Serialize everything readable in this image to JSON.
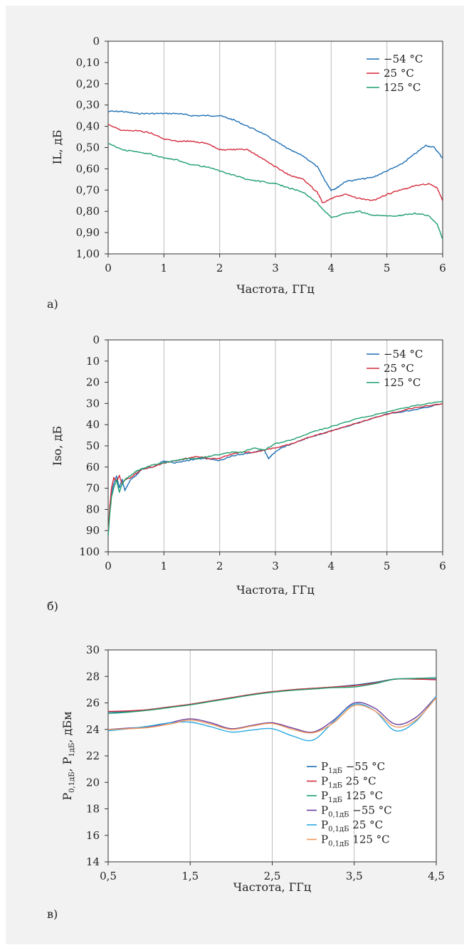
{
  "colors": {
    "blue": "#1f6fb4",
    "red": "#d42c3c",
    "green": "#1e9e6e",
    "purple": "#6b3fa0",
    "cyan": "#29a9e0",
    "orange": "#f0965a"
  },
  "chart_data": [
    {
      "type": "line",
      "panel_label": "а)",
      "xlabel": "Частота, ГГц",
      "ylabel": "IL, дБ",
      "xlim": [
        0,
        6
      ],
      "ylim": [
        0,
        1.0
      ],
      "y_inverted": true,
      "grid": "vertical",
      "legend_position": "top-right",
      "x_ticks": [
        "0",
        "1",
        "2",
        "3",
        "4",
        "5",
        "6"
      ],
      "y_ticks": [
        "0",
        "0,10",
        "0,20",
        "0,30",
        "0,40",
        "0,50",
        "0,60",
        "0,70",
        "0,80",
        "0,90",
        "1,00"
      ],
      "series": [
        {
          "name": "−54 °C",
          "color": "blue",
          "x": [
            0,
            0.25,
            0.5,
            0.75,
            1,
            1.25,
            1.5,
            1.75,
            2,
            2.25,
            2.5,
            2.75,
            3,
            3.25,
            3.5,
            3.75,
            3.9,
            4.0,
            4.1,
            4.25,
            4.5,
            4.75,
            5,
            5.25,
            5.5,
            5.7,
            5.85,
            6
          ],
          "y": [
            0.33,
            0.33,
            0.34,
            0.34,
            0.34,
            0.34,
            0.35,
            0.35,
            0.35,
            0.37,
            0.4,
            0.43,
            0.47,
            0.51,
            0.54,
            0.59,
            0.66,
            0.7,
            0.69,
            0.66,
            0.65,
            0.64,
            0.61,
            0.58,
            0.53,
            0.49,
            0.5,
            0.55
          ]
        },
        {
          "name": "25 °C",
          "color": "red",
          "x": [
            0,
            0.25,
            0.5,
            0.75,
            1,
            1.25,
            1.5,
            1.75,
            2,
            2.25,
            2.5,
            2.75,
            3,
            3.25,
            3.5,
            3.75,
            3.85,
            4.0,
            4.25,
            4.5,
            4.75,
            5,
            5.25,
            5.5,
            5.75,
            5.9,
            6
          ],
          "y": [
            0.39,
            0.42,
            0.42,
            0.43,
            0.46,
            0.47,
            0.47,
            0.48,
            0.51,
            0.51,
            0.51,
            0.55,
            0.59,
            0.63,
            0.65,
            0.71,
            0.76,
            0.74,
            0.72,
            0.74,
            0.75,
            0.72,
            0.7,
            0.68,
            0.67,
            0.69,
            0.75
          ]
        },
        {
          "name": "125 °C",
          "color": "green",
          "x": [
            0,
            0.25,
            0.5,
            0.75,
            1,
            1.25,
            1.5,
            1.75,
            2,
            2.25,
            2.5,
            2.75,
            3,
            3.25,
            3.5,
            3.75,
            4.0,
            4.25,
            4.5,
            4.75,
            5,
            5.25,
            5.5,
            5.75,
            5.9,
            6
          ],
          "y": [
            0.48,
            0.51,
            0.52,
            0.53,
            0.55,
            0.56,
            0.58,
            0.59,
            0.61,
            0.63,
            0.65,
            0.66,
            0.67,
            0.69,
            0.71,
            0.76,
            0.83,
            0.81,
            0.8,
            0.82,
            0.82,
            0.82,
            0.81,
            0.82,
            0.86,
            0.93
          ]
        }
      ]
    },
    {
      "type": "line",
      "panel_label": "б)",
      "xlabel": "Частота, ГГц",
      "ylabel": "Iso, дБ",
      "xlim": [
        0,
        6
      ],
      "ylim": [
        0,
        100
      ],
      "y_inverted": true,
      "grid": "vertical",
      "legend_position": "top-right",
      "x_ticks": [
        "0",
        "1",
        "2",
        "3",
        "4",
        "5",
        "6"
      ],
      "y_ticks": [
        "0",
        "10",
        "20",
        "30",
        "40",
        "50",
        "60",
        "70",
        "80",
        "90",
        "100"
      ],
      "series": [
        {
          "name": "−54 °C",
          "color": "blue",
          "x": [
            0,
            0.03,
            0.06,
            0.1,
            0.15,
            0.2,
            0.25,
            0.3,
            0.4,
            0.5,
            0.6,
            0.8,
            1.0,
            1.2,
            1.4,
            1.6,
            1.8,
            2.0,
            2.2,
            2.4,
            2.6,
            2.8,
            2.88,
            2.95,
            3.1,
            3.3,
            3.6,
            4.0,
            4.5,
            5.0,
            5.5,
            6.0
          ],
          "y": [
            92,
            80,
            72,
            68,
            64,
            70,
            66,
            71,
            66,
            64,
            61,
            60,
            57,
            58,
            57,
            56,
            56,
            57,
            55,
            54,
            53,
            52,
            56,
            54,
            51,
            49,
            46,
            43,
            39,
            35,
            33,
            30
          ]
        },
        {
          "name": "25 °C",
          "color": "red",
          "x": [
            0,
            0.03,
            0.06,
            0.1,
            0.15,
            0.2,
            0.25,
            0.3,
            0.4,
            0.5,
            0.6,
            0.8,
            1.0,
            1.2,
            1.4,
            1.6,
            1.8,
            2.0,
            2.2,
            2.4,
            2.6,
            2.8,
            3.0,
            3.3,
            3.6,
            4.0,
            4.5,
            5.0,
            5.5,
            6.0
          ],
          "y": [
            92,
            78,
            70,
            65,
            67,
            64,
            68,
            66,
            65,
            63,
            61,
            60,
            58,
            57,
            56,
            55,
            56,
            56,
            54,
            53,
            53,
            52,
            51,
            49,
            46,
            43,
            39,
            35,
            32,
            30
          ]
        },
        {
          "name": "125 °C",
          "color": "green",
          "x": [
            0,
            0.03,
            0.06,
            0.1,
            0.15,
            0.2,
            0.25,
            0.3,
            0.4,
            0.5,
            0.6,
            0.8,
            1.0,
            1.2,
            1.4,
            1.6,
            1.8,
            2.0,
            2.2,
            2.4,
            2.6,
            2.8,
            3.0,
            3.3,
            3.6,
            4.0,
            4.5,
            5.0,
            5.5,
            6.0
          ],
          "y": [
            92,
            82,
            74,
            70,
            66,
            72,
            68,
            66,
            64,
            62,
            61,
            59,
            58,
            57,
            56,
            56,
            55,
            54,
            53,
            53,
            51,
            52,
            49,
            47,
            44,
            41,
            37,
            34,
            31,
            29
          ]
        }
      ]
    },
    {
      "type": "line",
      "panel_label": "в)",
      "xlabel": "Частота, ГГц",
      "ylabel": "P0,1дБ, P1дБ, дБм",
      "xlim": [
        0.5,
        4.5
      ],
      "ylim": [
        14,
        30
      ],
      "y_inverted": false,
      "grid": "vertical",
      "legend_position": "bottom-right",
      "x_ticks": [
        "0,5",
        "1,5",
        "2,5",
        "3,5",
        "4,5"
      ],
      "y_ticks": [
        "14",
        "16",
        "18",
        "20",
        "22",
        "24",
        "26",
        "28",
        "30"
      ],
      "series": [
        {
          "name": "P1дБ −55 °C",
          "name_main": "P",
          "name_sub": "1дБ",
          "name_rest": " −55 °C",
          "color": "blue",
          "x": [
            0.5,
            0.75,
            1.0,
            1.25,
            1.5,
            1.75,
            2.0,
            2.25,
            2.5,
            2.75,
            3.0,
            3.25,
            3.5,
            3.75,
            4.0,
            4.25,
            4.5
          ],
          "y": [
            25.3,
            25.35,
            25.5,
            25.7,
            25.9,
            26.15,
            26.4,
            26.65,
            26.85,
            27.0,
            27.1,
            27.2,
            27.35,
            27.55,
            27.8,
            27.8,
            27.8
          ]
        },
        {
          "name": "P1дБ 25 °C",
          "name_main": "P",
          "name_sub": "1дБ",
          "name_rest": " 25 °C",
          "color": "red",
          "x": [
            0.5,
            0.75,
            1.0,
            1.25,
            1.5,
            1.75,
            2.0,
            2.25,
            2.5,
            2.75,
            3.0,
            3.25,
            3.5,
            3.75,
            4.0,
            4.25,
            4.5
          ],
          "y": [
            25.35,
            25.4,
            25.5,
            25.7,
            25.9,
            26.15,
            26.4,
            26.65,
            26.85,
            27.0,
            27.1,
            27.2,
            27.3,
            27.5,
            27.8,
            27.8,
            27.75
          ]
        },
        {
          "name": "P1дБ 125 °C",
          "name_main": "P",
          "name_sub": "1дБ",
          "name_rest": " 125 °C",
          "color": "green",
          "x": [
            0.5,
            0.75,
            1.0,
            1.25,
            1.5,
            1.75,
            2.0,
            2.25,
            2.5,
            2.75,
            3.0,
            3.25,
            3.5,
            3.75,
            4.0,
            4.25,
            4.5
          ],
          "y": [
            25.2,
            25.3,
            25.45,
            25.65,
            25.85,
            26.1,
            26.35,
            26.6,
            26.8,
            26.95,
            27.05,
            27.15,
            27.2,
            27.45,
            27.8,
            27.85,
            27.9
          ]
        },
        {
          "name": "P0,1дБ −55 °C",
          "name_main": "P",
          "name_sub": "0,1дБ",
          "name_rest": " −55 °C",
          "color": "purple",
          "x": [
            0.5,
            0.75,
            1.0,
            1.25,
            1.5,
            1.75,
            2.0,
            2.25,
            2.5,
            2.75,
            3.0,
            3.25,
            3.5,
            3.75,
            4.0,
            4.25,
            4.5
          ],
          "y": [
            24.0,
            24.1,
            24.2,
            24.5,
            24.8,
            24.5,
            24.05,
            24.3,
            24.5,
            24.1,
            23.8,
            24.7,
            26.0,
            25.6,
            24.4,
            24.9,
            26.5
          ]
        },
        {
          "name": "P0,1дБ 25 °C",
          "name_main": "P",
          "name_sub": "0,1дБ",
          "name_rest": " 25 °C",
          "color": "cyan",
          "x": [
            0.5,
            0.75,
            1.0,
            1.25,
            1.5,
            1.75,
            2.0,
            2.25,
            2.5,
            2.75,
            3.0,
            3.25,
            3.5,
            3.75,
            4.0,
            4.25,
            4.5
          ],
          "y": [
            23.9,
            24.05,
            24.25,
            24.5,
            24.55,
            24.2,
            23.8,
            23.95,
            24.05,
            23.5,
            23.2,
            24.6,
            25.9,
            25.4,
            23.9,
            24.6,
            26.5
          ]
        },
        {
          "name": "P0,1дБ 125 °C",
          "name_main": "P",
          "name_sub": "0,1дБ",
          "name_rest": " 125 °C",
          "color": "orange",
          "x": [
            0.5,
            0.75,
            1.0,
            1.25,
            1.5,
            1.75,
            2.0,
            2.25,
            2.5,
            2.75,
            3.0,
            3.25,
            3.5,
            3.75,
            4.0,
            4.25,
            4.5
          ],
          "y": [
            24.0,
            24.05,
            24.15,
            24.4,
            24.7,
            24.4,
            24.0,
            24.25,
            24.45,
            24.0,
            23.75,
            24.5,
            25.8,
            25.4,
            24.2,
            24.7,
            26.4
          ]
        }
      ]
    }
  ]
}
